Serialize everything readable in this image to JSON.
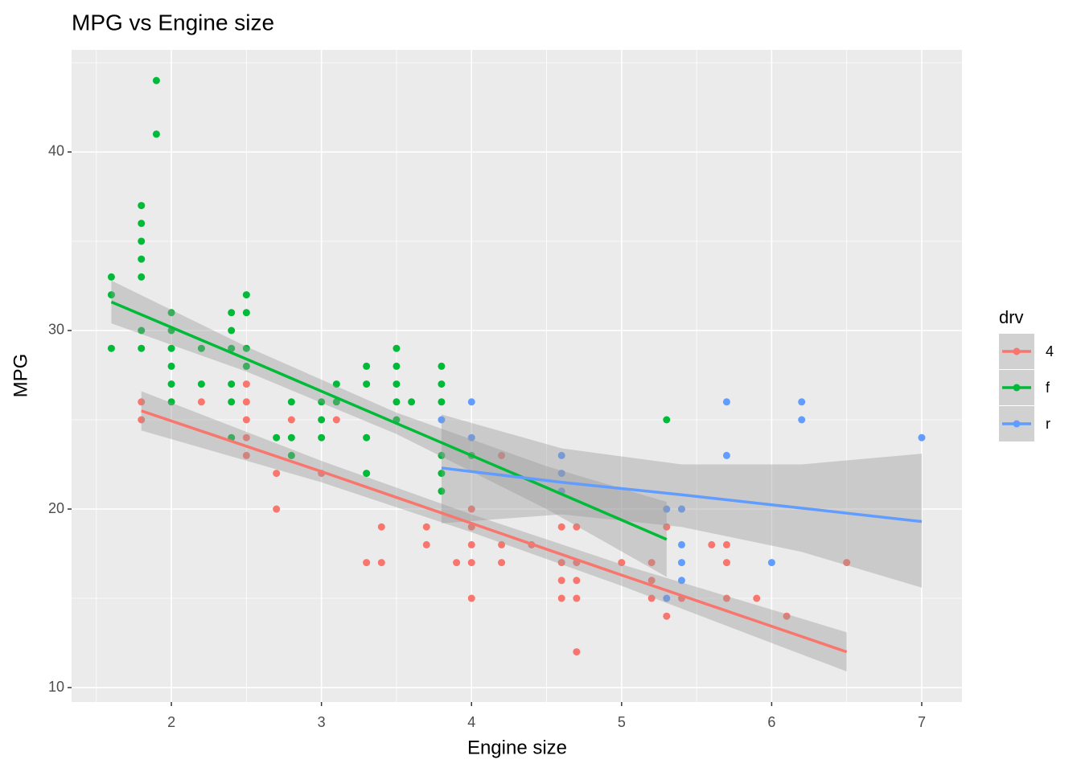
{
  "chart_data": {
    "type": "scatter",
    "title": "MPG vs Engine size",
    "x_label": "Engine size",
    "y_label": "MPG",
    "legend_title": "drv",
    "legend_position": "right",
    "grid": true,
    "xlim": [
      1.335,
      7.268
    ],
    "ylim": [
      9.19,
      45.72
    ],
    "xticks": [
      2,
      3,
      4,
      5,
      6,
      7
    ],
    "yticks": [
      10,
      20,
      30,
      40
    ],
    "x_minor_ticks": [
      1.5,
      2.5,
      3.5,
      4.5,
      5.5,
      6.5
    ],
    "y_minor_ticks": [
      15,
      25,
      35,
      45
    ],
    "series": [
      {
        "name": "4",
        "color": "#F8766D",
        "x": [
          1.8,
          1.8,
          2.2,
          2.5,
          2.5,
          2.5,
          2.5,
          2.5,
          2.7,
          2.7,
          2.8,
          3.0,
          3.1,
          3.4,
          3.4,
          3.3,
          3.7,
          3.7,
          3.9,
          4.0,
          4.0,
          4.0,
          4.0,
          4.0,
          4.2,
          4.2,
          4.2,
          4.4,
          4.6,
          4.6,
          4.6,
          4.6,
          4.7,
          4.7,
          4.7,
          4.7,
          4.7,
          5.0,
          5.2,
          5.2,
          5.2,
          5.3,
          5.3,
          5.4,
          5.6,
          5.7,
          5.7,
          5.7,
          5.9,
          6.1,
          6.5
        ],
        "values": [
          26,
          25,
          26,
          27,
          26,
          25,
          24,
          23,
          22,
          20,
          25,
          22,
          25,
          19,
          17,
          17,
          19,
          18,
          17,
          20,
          19,
          18,
          17,
          15,
          23,
          18,
          17,
          18,
          19,
          17,
          16,
          15,
          19,
          17,
          16,
          15,
          12,
          17,
          17,
          16,
          15,
          19,
          14,
          15,
          18,
          18,
          17,
          15,
          15,
          14,
          17
        ],
        "fit_x": [
          1.8,
          3,
          4,
          5,
          6.5
        ],
        "fit": [
          25.5,
          22.1,
          19.2,
          16.3,
          12.0
        ],
        "fit_lower": [
          24.4,
          21.5,
          18.7,
          15.7,
          10.9
        ],
        "fit_upper": [
          26.6,
          22.7,
          19.7,
          16.9,
          13.1
        ]
      },
      {
        "name": "f",
        "color": "#00BA38",
        "x": [
          1.6,
          1.6,
          1.6,
          1.8,
          1.8,
          1.8,
          1.8,
          1.8,
          1.8,
          1.8,
          1.9,
          1.9,
          2.0,
          2.0,
          2.0,
          2.0,
          2.0,
          2.0,
          2.2,
          2.2,
          2.4,
          2.4,
          2.4,
          2.4,
          2.4,
          2.4,
          2.5,
          2.5,
          2.5,
          2.5,
          2.7,
          2.8,
          2.8,
          2.8,
          3.0,
          3.0,
          3.0,
          3.1,
          3.1,
          3.3,
          3.3,
          3.3,
          3.3,
          3.5,
          3.5,
          3.5,
          3.5,
          3.5,
          3.6,
          3.8,
          3.8,
          3.8,
          3.8,
          3.8,
          3.8,
          4.0,
          5.3
        ],
        "values": [
          33,
          32,
          29,
          37,
          36,
          35,
          34,
          33,
          30,
          29,
          44,
          41,
          31,
          30,
          29,
          28,
          27,
          26,
          29,
          27,
          31,
          30,
          29,
          27,
          26,
          24,
          32,
          31,
          29,
          28,
          24,
          26,
          24,
          23,
          26,
          25,
          24,
          27,
          26,
          28,
          27,
          24,
          22,
          29,
          28,
          27,
          26,
          25,
          26,
          28,
          27,
          26,
          23,
          22,
          21,
          23,
          25
        ],
        "fit_x": [
          1.6,
          2.5,
          3.5,
          4.5,
          5.3
        ],
        "fit": [
          31.6,
          28.4,
          24.8,
          21.2,
          18.3
        ],
        "fit_lower": [
          30.4,
          27.7,
          24.2,
          20.0,
          16.2
        ],
        "fit_upper": [
          32.8,
          29.1,
          25.4,
          22.4,
          20.4
        ]
      },
      {
        "name": "r",
        "color": "#619CFF",
        "x": [
          3.8,
          4.0,
          4.0,
          4.6,
          4.6,
          4.6,
          5.3,
          5.3,
          5.4,
          5.4,
          5.4,
          5.4,
          5.7,
          5.7,
          6.0,
          6.2,
          6.2,
          7.0
        ],
        "values": [
          25,
          26,
          24,
          23,
          22,
          21,
          20,
          15,
          20,
          18,
          17,
          16,
          26,
          23,
          17,
          26,
          25,
          24
        ],
        "fit_x": [
          3.8,
          4.6,
          5.4,
          6.2,
          7.0
        ],
        "fit": [
          22.3,
          21.5,
          20.8,
          20.05,
          19.3
        ],
        "fit_lower": [
          19.2,
          19.7,
          19.0,
          17.6,
          15.6
        ],
        "fit_upper": [
          25.3,
          23.4,
          22.5,
          22.5,
          23.1
        ]
      }
    ]
  }
}
